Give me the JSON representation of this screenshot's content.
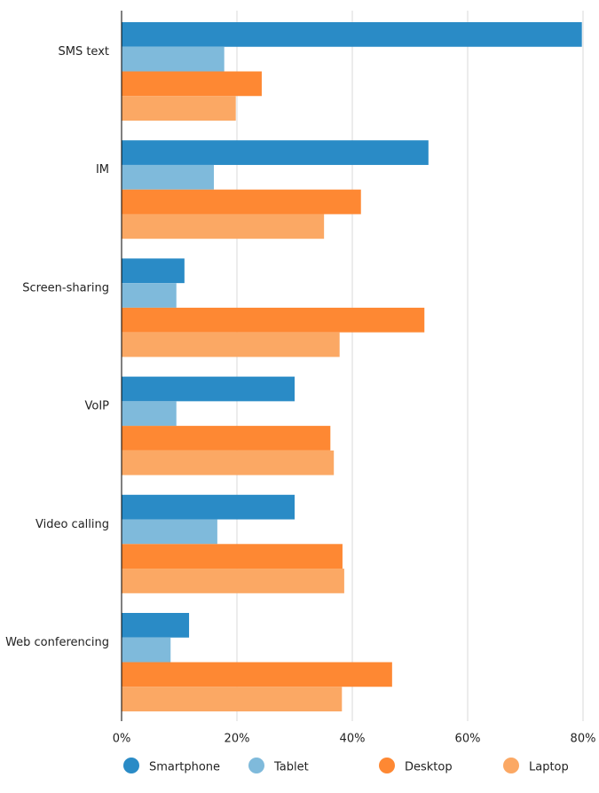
{
  "chart_data": {
    "type": "bar",
    "orientation": "horizontal",
    "title": "",
    "xlabel": "",
    "ylabel": "",
    "xlim": [
      0,
      80
    ],
    "x_ticks": [
      0,
      20,
      40,
      60,
      80
    ],
    "x_tick_labels": [
      "0%",
      "20%",
      "40%",
      "60%",
      "80%"
    ],
    "grid": true,
    "legend_position": "bottom",
    "categories": [
      "SMS text",
      "IM",
      "Screen-sharing",
      "VoIP",
      "Video calling",
      "Web conferencing"
    ],
    "series": [
      {
        "name": "Smartphone",
        "color": "#2a8bc6",
        "values": [
          79.8,
          53.2,
          10.9,
          30.0,
          30.0,
          11.7
        ]
      },
      {
        "name": "Tablet",
        "color": "#7fbadb",
        "values": [
          17.8,
          16.0,
          9.5,
          9.5,
          16.6,
          8.5
        ]
      },
      {
        "name": "Desktop",
        "color": "#fe8833",
        "values": [
          24.3,
          41.5,
          52.5,
          36.2,
          38.3,
          46.9
        ]
      },
      {
        "name": "Laptop",
        "color": "#fba864",
        "values": [
          19.8,
          35.1,
          37.8,
          36.8,
          38.6,
          38.2
        ]
      }
    ]
  }
}
